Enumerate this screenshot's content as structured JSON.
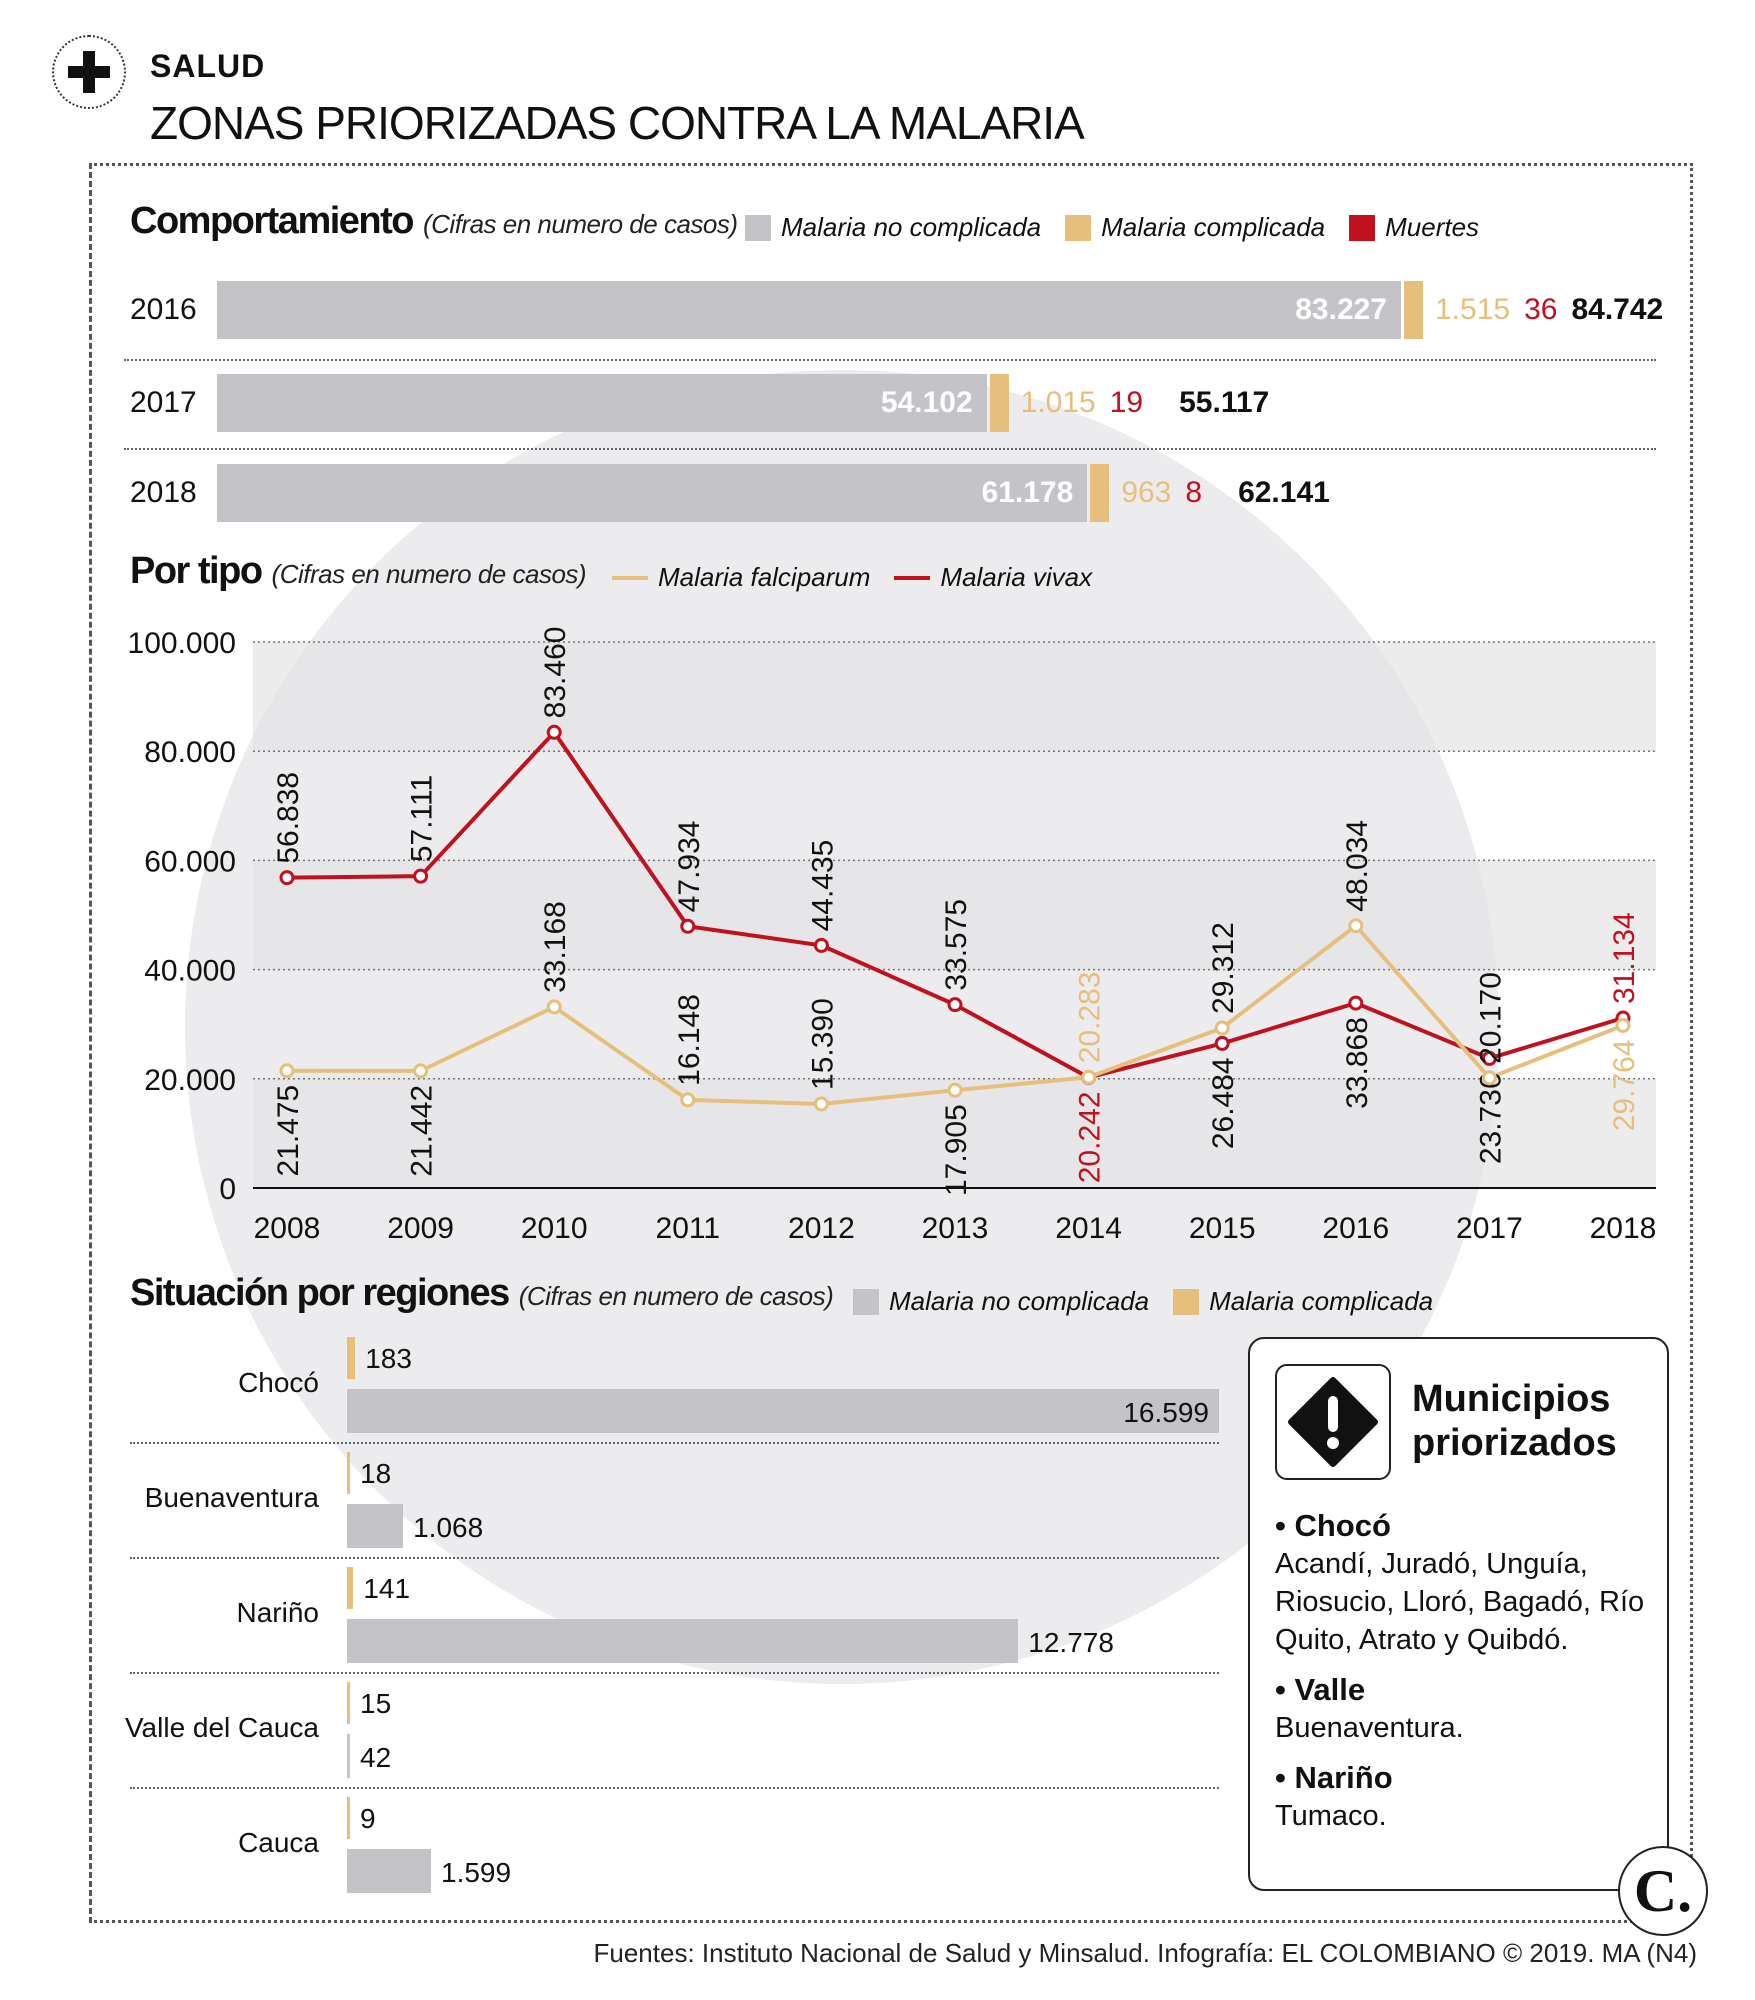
{
  "header": {
    "section": "SALUD",
    "title": "ZONAS PRIORIZADAS CONTRA LA MALARIA"
  },
  "colors": {
    "no_complicada": "#c4c4c8",
    "complicada": "#e6bf7c",
    "muertes": "#c0111f",
    "falciparum": "#e6bf7c",
    "vivax": "#c0111f"
  },
  "comportamiento": {
    "title": "Comportamiento",
    "subtitle": "(Cifras en numero de casos)",
    "legend": [
      "Malaria no complicada",
      "Malaria complicada",
      "Muertes"
    ],
    "rows": [
      {
        "year": "2016",
        "no_complicada": 83227,
        "no_complicada_label": "83.227",
        "complicada": "1.515",
        "muertes": "36",
        "total": "84.742"
      },
      {
        "year": "2017",
        "no_complicada": 54102,
        "no_complicada_label": "54.102",
        "complicada": "1.015",
        "muertes": "19",
        "total": "55.117"
      },
      {
        "year": "2018",
        "no_complicada": 61178,
        "no_complicada_label": "61.178",
        "complicada": "963",
        "muertes": "8",
        "total": "62.141"
      }
    ]
  },
  "por_tipo": {
    "title": "Por tipo",
    "subtitle": "(Cifras en numero de casos)",
    "legend": [
      "Malaria falciparum",
      "Malaria vivax"
    ]
  },
  "chart_data": {
    "type": "line",
    "x": [
      "2008",
      "2009",
      "2010",
      "2011",
      "2012",
      "2013",
      "2014",
      "2015",
      "2016",
      "2017",
      "2018"
    ],
    "ylim": [
      0,
      100000
    ],
    "yticks": [
      "0",
      "20.000",
      "40.000",
      "60.000",
      "80.000",
      "100.000"
    ],
    "grid": true,
    "series": [
      {
        "name": "Malaria falciparum",
        "values": [
          21475,
          21442,
          33168,
          16148,
          15390,
          17905,
          20283,
          29312,
          48034,
          20170,
          29764
        ],
        "labels": [
          "21.475",
          "21.442",
          "33.168",
          "16.148",
          "15.390",
          "17.905",
          "20.283",
          "29.312",
          "48.034",
          "20.170",
          "29.764"
        ]
      },
      {
        "name": "Malaria vivax",
        "values": [
          56838,
          57111,
          83460,
          47934,
          44435,
          33575,
          20242,
          26484,
          33868,
          23736,
          31134
        ],
        "labels": [
          "56.838",
          "57.111",
          "83.460",
          "47.934",
          "44.435",
          "33.575",
          "20.242",
          "26.484",
          "33.868",
          "23.736",
          "31.134"
        ]
      }
    ]
  },
  "regiones": {
    "title": "Situación por regiones",
    "subtitle": "(Cifras en numero de casos)",
    "legend": [
      "Malaria no complicada",
      "Malaria complicada"
    ],
    "rows": [
      {
        "name": "Chocó",
        "complicada": 183,
        "complicada_label": "183",
        "no_complicada": 16599,
        "no_complicada_label": "16.599"
      },
      {
        "name": "Buenaventura",
        "complicada": 18,
        "complicada_label": "18",
        "no_complicada": 1068,
        "no_complicada_label": "1.068"
      },
      {
        "name": "Nariño",
        "complicada": 141,
        "complicada_label": "141",
        "no_complicada": 12778,
        "no_complicada_label": "12.778"
      },
      {
        "name": "Valle del Cauca",
        "complicada": 15,
        "complicada_label": "15",
        "no_complicada": 42,
        "no_complicada_label": "42"
      },
      {
        "name": "Cauca",
        "complicada": 9,
        "complicada_label": "9",
        "no_complicada": 1599,
        "no_complicada_label": "1.599"
      }
    ]
  },
  "municipios": {
    "title_line1": "Municipios",
    "title_line2": "priorizados",
    "groups": [
      {
        "name": "Chocó",
        "text": "Acandí, Juradó, Unguía, Riosucio, Lloró, Bagadó, Río Quito, Atrato y Quibdó."
      },
      {
        "name": "Valle",
        "text": "Buenaventura."
      },
      {
        "name": "Nariño",
        "text": "Tumaco."
      }
    ]
  },
  "logo": "C.",
  "footer": "Fuentes: Instituto Nacional de Salud y Minsalud. Infografía: EL COLOMBIANO © 2019. MA (N4)"
}
